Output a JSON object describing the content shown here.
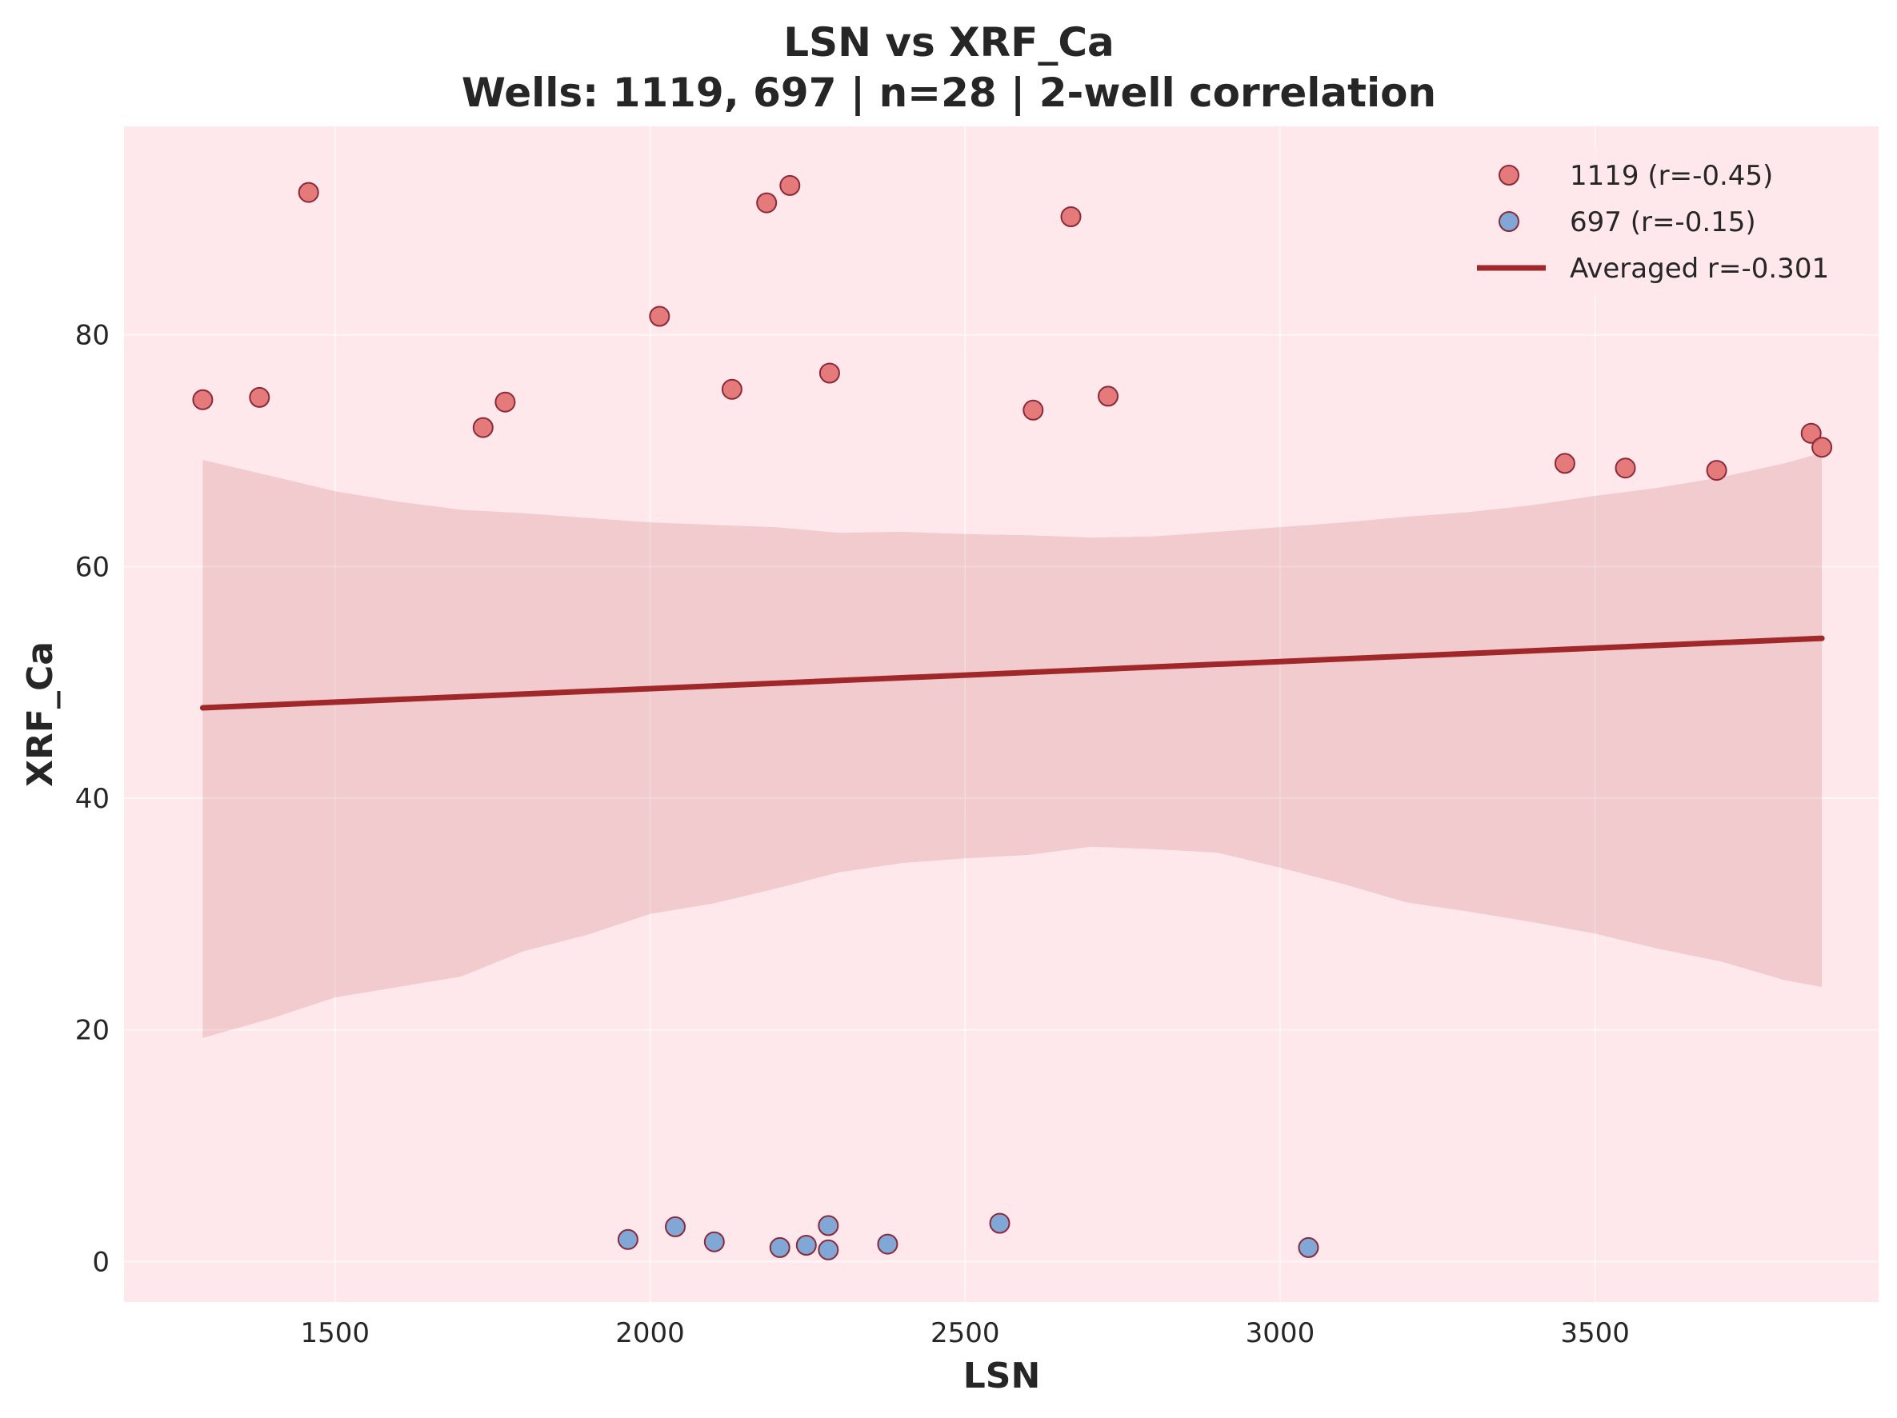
{
  "chart_data": {
    "type": "scatter",
    "title": "LSN vs XRF_Ca",
    "subtitle": "Wells: 1119, 697 | n=28 | 2-well correlation",
    "xlabel": "LSN",
    "ylabel": "XRF_Ca",
    "xlim": [
      1165,
      3950
    ],
    "ylim": [
      -3.5,
      98
    ],
    "xticks": [
      1500,
      2000,
      2500,
      3000,
      3500
    ],
    "yticks": [
      0,
      20,
      40,
      60,
      80
    ],
    "grid": true,
    "legend_position": "top-right",
    "background_color": "#ffe8ec",
    "series": [
      {
        "name": "1119 (r=-0.45)",
        "color": "#e06666",
        "points": [
          [
            1290,
            74.4
          ],
          [
            1380,
            74.6
          ],
          [
            1458,
            92.3
          ],
          [
            1735,
            72.0
          ],
          [
            1770,
            74.2
          ],
          [
            2015,
            81.6
          ],
          [
            2130,
            75.3
          ],
          [
            2185,
            91.4
          ],
          [
            2222,
            92.9
          ],
          [
            2285,
            76.7
          ],
          [
            2608,
            73.5
          ],
          [
            2668,
            90.2
          ],
          [
            2727,
            74.7
          ],
          [
            3452,
            68.9
          ],
          [
            3548,
            68.5
          ],
          [
            3693,
            68.3
          ],
          [
            3843,
            71.5
          ],
          [
            3860,
            70.3
          ]
        ]
      },
      {
        "name": "697 (r=-0.15)",
        "color": "#6a9bd1",
        "points": [
          [
            1965,
            1.9
          ],
          [
            2040,
            3.0
          ],
          [
            2102,
            1.7
          ],
          [
            2206,
            1.2
          ],
          [
            2248,
            1.4
          ],
          [
            2283,
            1.0
          ],
          [
            2283,
            3.1
          ],
          [
            2377,
            1.5
          ],
          [
            2555,
            3.3
          ],
          [
            3045,
            1.2
          ]
        ]
      }
    ],
    "trend_line": {
      "name": "Averaged r=-0.301",
      "color": "#a0282a",
      "points": [
        [
          1290,
          47.8
        ],
        [
          3860,
          53.8
        ]
      ]
    },
    "confidence_band": {
      "color": "#a0282a",
      "x": [
        1290,
        1400,
        1500,
        1600,
        1700,
        1800,
        1900,
        2000,
        2100,
        2200,
        2300,
        2400,
        2500,
        2600,
        2700,
        2800,
        2900,
        3000,
        3100,
        3200,
        3300,
        3400,
        3500,
        3600,
        3700,
        3800,
        3860
      ],
      "upper": [
        69.2,
        67.8,
        66.5,
        65.6,
        64.9,
        64.6,
        64.2,
        63.8,
        63.6,
        63.4,
        62.9,
        63.0,
        62.8,
        62.7,
        62.5,
        62.6,
        63.0,
        63.4,
        63.8,
        64.3,
        64.7,
        65.3,
        66.1,
        66.8,
        67.7,
        68.9,
        69.8
      ],
      "lower": [
        19.3,
        21.0,
        22.8,
        23.7,
        24.6,
        26.8,
        28.2,
        30.0,
        30.9,
        32.2,
        33.6,
        34.4,
        34.8,
        35.1,
        35.8,
        35.6,
        35.3,
        34.0,
        32.6,
        31.0,
        30.2,
        29.3,
        28.3,
        27.0,
        25.9,
        24.3,
        23.7
      ]
    }
  }
}
